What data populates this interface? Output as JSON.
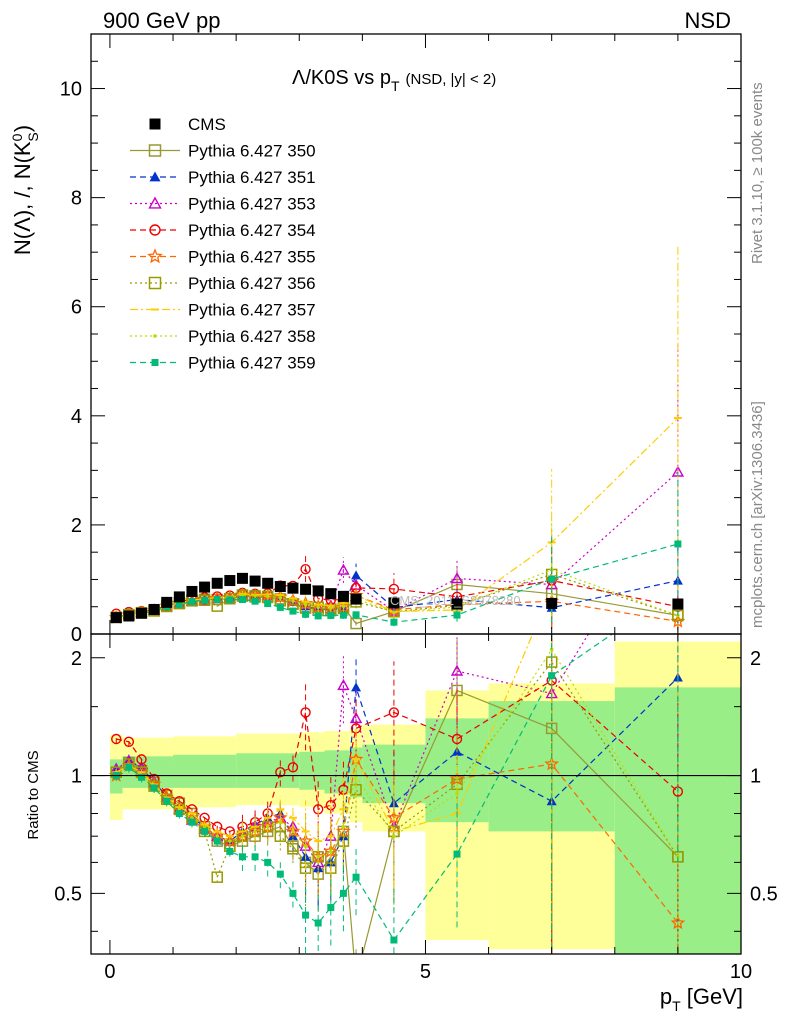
{
  "header": {
    "left": "900 GeV pp",
    "right": "NSD"
  },
  "side_labels": {
    "rivet": "Rivet 3.1.10, ≥ 100k events",
    "mcplots": "mcplots.cern.ch [arXiv:1306.3436]"
  },
  "chart_data": {
    "type": "scatter",
    "title": "Λ/K0S vs p_T (NSD, |y| < 2)",
    "title_main": "Λ/K0S vs p",
    "title_sub": "T",
    "title_small": "(NSD, |y| < 2)",
    "watermark": "CMS_2011_S8978280",
    "xlabel": "p_T [GeV]",
    "ylabel_main": "N(Λ), /, N(K",
    "ylabel_sup": "0",
    "ylabel_sub": "S",
    "ylabel_end": ")",
    "ratio_ylabel": "Ratio to CMS",
    "xlim": [
      -0.3,
      10
    ],
    "main_ylim": [
      0,
      11
    ],
    "ratio_ylim": [
      0.35,
      2.3
    ],
    "ratio_log": true,
    "x_ticks": [
      0,
      5,
      10
    ],
    "main_y_ticks": [
      0,
      2,
      4,
      6,
      8,
      10
    ],
    "ratio_y_ticks": [
      0.5,
      1,
      2
    ],
    "x_tick_labels": [
      "0",
      "5",
      "10"
    ],
    "main_y_tick_labels": [
      "0",
      "2",
      "4",
      "6",
      "8",
      "10"
    ],
    "ratio_y_tick_labels": [
      "0.5",
      "1",
      "2"
    ],
    "x": [
      0.1,
      0.3,
      0.5,
      0.7,
      0.9,
      1.1,
      1.3,
      1.5,
      1.7,
      1.9,
      2.1,
      2.3,
      2.5,
      2.7,
      2.9,
      3.1,
      3.3,
      3.5,
      3.7,
      3.9,
      4.5,
      5.5,
      7.0,
      9.0
    ],
    "cms": [
      0.3,
      0.33,
      0.38,
      0.45,
      0.58,
      0.68,
      0.78,
      0.86,
      0.93,
      0.98,
      1.02,
      0.97,
      0.93,
      0.87,
      0.84,
      0.82,
      0.79,
      0.74,
      0.69,
      0.64,
      0.57,
      0.55,
      0.56,
      0.55
    ],
    "envelope": {
      "x_edges": [
        0,
        0.2,
        1.0,
        2.0,
        3.0,
        3.4,
        3.8,
        4.0,
        5.0,
        6.0,
        8.0,
        10.0
      ],
      "green_lo": [
        0.9,
        0.93,
        0.93,
        0.93,
        0.92,
        0.9,
        0.88,
        0.85,
        0.76,
        0.72,
        0.35,
        0.35
      ],
      "green_hi": [
        1.1,
        1.12,
        1.13,
        1.14,
        1.15,
        1.16,
        1.18,
        1.2,
        1.4,
        1.55,
        1.68,
        1.68
      ],
      "yellow_lo": [
        0.77,
        0.82,
        0.83,
        0.84,
        0.83,
        0.8,
        0.76,
        0.72,
        0.38,
        0.36,
        0.35,
        0.35
      ],
      "yellow_hi": [
        1.27,
        1.25,
        1.26,
        1.28,
        1.29,
        1.3,
        1.32,
        1.35,
        1.65,
        1.72,
        2.2,
        2.2
      ]
    },
    "series": [
      {
        "name": "CMS",
        "color": "#000000",
        "marker": "square-filled",
        "line": "none"
      },
      {
        "name": "Pythia 6.427 350",
        "color": "#999933",
        "marker": "square-open",
        "line": "solid",
        "ratio": [
          1.02,
          1.08,
          1.03,
          0.96,
          0.89,
          0.85,
          0.8,
          0.74,
          0.68,
          0.66,
          0.68,
          0.7,
          0.72,
          0.74,
          0.66,
          0.6,
          0.56,
          0.62,
          0.72,
          0.3,
          0.72,
          1.65,
          1.32,
          0.62
        ]
      },
      {
        "name": "Pythia 6.427 351",
        "color": "#0033cc",
        "marker": "triangle-up-filled",
        "line": "dashed",
        "ratio": [
          1.03,
          1.1,
          1.04,
          0.97,
          0.88,
          0.83,
          0.78,
          0.74,
          0.7,
          0.68,
          0.72,
          0.75,
          0.78,
          0.8,
          0.7,
          0.62,
          0.58,
          0.6,
          0.7,
          1.68,
          0.85,
          1.15,
          0.86,
          1.78
        ]
      },
      {
        "name": "Pythia 6.427 353",
        "color": "#cc00cc",
        "marker": "triangle-up-open",
        "line": "dotted",
        "ratio": [
          1.04,
          1.09,
          1.05,
          0.96,
          0.88,
          0.82,
          0.77,
          0.73,
          0.7,
          0.68,
          0.7,
          0.74,
          0.76,
          0.78,
          0.74,
          0.66,
          0.6,
          0.7,
          1.7,
          1.4,
          0.74,
          1.85,
          1.62,
          5.4
        ]
      },
      {
        "name": "Pythia 6.427 354",
        "color": "#ee0000",
        "marker": "circle-open",
        "line": "dashed",
        "ratio": [
          1.24,
          1.22,
          1.1,
          0.98,
          0.9,
          0.86,
          0.82,
          0.78,
          0.74,
          0.72,
          0.74,
          0.76,
          0.8,
          1.02,
          1.05,
          1.45,
          0.82,
          0.84,
          0.92,
          1.32,
          1.45,
          1.24,
          1.75,
          0.91
        ]
      },
      {
        "name": "Pythia 6.427 355",
        "color": "#ff6600",
        "marker": "star-open",
        "line": "dashed",
        "ratio": [
          1.0,
          1.06,
          1.02,
          0.95,
          0.88,
          0.82,
          0.78,
          0.74,
          0.7,
          0.68,
          0.7,
          0.72,
          0.74,
          0.78,
          0.72,
          0.68,
          0.62,
          0.64,
          0.72,
          1.1,
          0.78,
          0.98,
          1.07,
          0.42
        ]
      },
      {
        "name": "Pythia 6.427 356",
        "color": "#999900",
        "marker": "square-open",
        "line": "dotted",
        "ratio": [
          1.02,
          1.07,
          1.02,
          0.94,
          0.87,
          0.82,
          0.78,
          0.72,
          0.55,
          0.66,
          0.7,
          0.72,
          0.74,
          0.7,
          0.65,
          0.58,
          0.62,
          0.58,
          0.68,
          0.92,
          0.72,
          0.95,
          1.95,
          0.62
        ]
      },
      {
        "name": "Pythia 6.427 357",
        "color": "#ffcc00",
        "marker": "dash",
        "line": "dashdot",
        "ratio": [
          1.02,
          1.06,
          1.02,
          0.95,
          0.88,
          0.83,
          0.8,
          0.75,
          0.72,
          0.7,
          0.72,
          0.74,
          0.78,
          0.82,
          0.78,
          0.72,
          0.68,
          0.7,
          0.82,
          1.1,
          0.72,
          0.8,
          3.0,
          7.2
        ]
      },
      {
        "name": "Pythia 6.427 358",
        "color": "#bbdd00",
        "marker": "dot",
        "line": "dotted",
        "ratio": [
          1.01,
          1.05,
          1.0,
          0.94,
          0.87,
          0.82,
          0.78,
          0.74,
          0.7,
          0.68,
          0.7,
          0.72,
          0.74,
          0.76,
          0.72,
          0.66,
          0.62,
          0.64,
          0.74,
          1.0,
          0.7,
          0.9,
          2.1,
          0.62
        ]
      },
      {
        "name": "Pythia 6.427 359",
        "color": "#00bb77",
        "marker": "square-filled-small",
        "line": "dashed",
        "ratio": [
          1.0,
          1.05,
          0.99,
          0.93,
          0.86,
          0.8,
          0.76,
          0.72,
          0.68,
          0.64,
          0.62,
          0.62,
          0.6,
          0.56,
          0.5,
          0.44,
          0.42,
          0.46,
          0.5,
          0.55,
          0.38,
          0.63,
          1.8,
          3.0
        ]
      }
    ]
  }
}
